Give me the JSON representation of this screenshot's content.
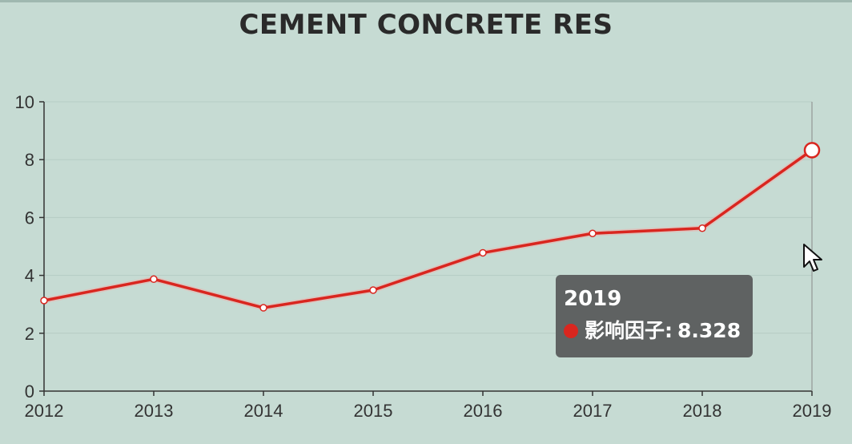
{
  "chart_data": {
    "type": "line",
    "title": "CEMENT CONCRETE RES",
    "x": [
      "2012",
      "2013",
      "2014",
      "2015",
      "2016",
      "2017",
      "2018",
      "2019"
    ],
    "series": [
      {
        "name": "影响因子",
        "values": [
          3.13,
          3.87,
          2.88,
          3.49,
          4.78,
          5.45,
          5.63,
          8.328
        ]
      }
    ],
    "xlabel": "",
    "ylabel": "",
    "ylim": [
      0,
      10
    ],
    "yticks": [
      "0",
      "2",
      "4",
      "6",
      "8",
      "10"
    ],
    "grid": true,
    "line_color": "#d9261f",
    "tooltip": {
      "title": "2019",
      "series_name": "影响因子",
      "separator": ":",
      "value": "8.328"
    }
  },
  "colors": {
    "background": "#c6dbd3",
    "series": "#d9261f",
    "tooltip_bg": "#5a5c5c"
  },
  "icons": {
    "cursor": "mouse-pointer-icon"
  }
}
